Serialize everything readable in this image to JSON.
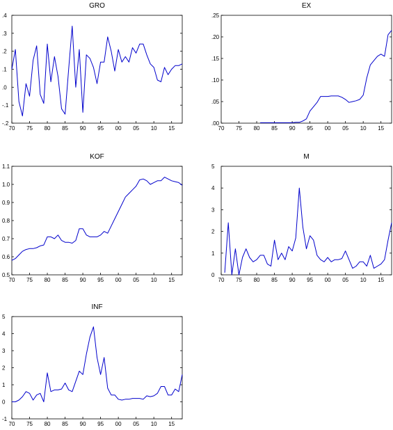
{
  "colors": {
    "line": "#0000cc",
    "axis": "#000000",
    "background": "#ffffff"
  },
  "chart_data": [
    {
      "type": "line",
      "title": "GRO",
      "xlabel": "",
      "ylabel": "",
      "xlim": [
        1970,
        2018
      ],
      "ylim": [
        -0.2,
        0.4
      ],
      "xticks": [
        1970,
        1975,
        1980,
        1985,
        1990,
        1995,
        2000,
        2005,
        2010,
        2015
      ],
      "xtick_labels": [
        "70",
        "75",
        "80",
        "85",
        "90",
        "95",
        "00",
        "05",
        "10",
        "15"
      ],
      "yticks": [
        -0.2,
        -0.1,
        0.0,
        0.1,
        0.2,
        0.3,
        0.4
      ],
      "ytick_labels": [
        "-.2",
        "-.1",
        ".0",
        ".1",
        ".2",
        ".3",
        ".4"
      ],
      "grid": false,
      "legend": "none",
      "series": [
        {
          "x": [
            1970,
            1971,
            1972,
            1973,
            1974,
            1975,
            1976,
            1977,
            1978,
            1979,
            1980,
            1981,
            1982,
            1983,
            1984,
            1985,
            1986,
            1987,
            1988,
            1989,
            1990,
            1991,
            1992,
            1993,
            1994,
            1995,
            1996,
            1997,
            1998,
            1999,
            2000,
            2001,
            2002,
            2003,
            2004,
            2005,
            2006,
            2007,
            2008,
            2009,
            2010,
            2011,
            2012,
            2013,
            2014,
            2015,
            2016,
            2017,
            2018
          ],
          "values": [
            0.1,
            0.21,
            -0.08,
            -0.16,
            0.02,
            -0.05,
            0.15,
            0.23,
            -0.04,
            -0.09,
            0.24,
            0.03,
            0.17,
            0.06,
            -0.12,
            -0.15,
            0.1,
            0.34,
            0.0,
            0.21,
            -0.14,
            0.18,
            0.16,
            0.11,
            0.02,
            0.14,
            0.14,
            0.28,
            0.2,
            0.09,
            0.21,
            0.14,
            0.17,
            0.14,
            0.22,
            0.19,
            0.24,
            0.24,
            0.18,
            0.13,
            0.11,
            0.04,
            0.03,
            0.11,
            0.07,
            0.1,
            0.12,
            0.12,
            0.13
          ]
        }
      ]
    },
    {
      "type": "line",
      "title": "EX",
      "xlabel": "",
      "ylabel": "",
      "xlim": [
        1970,
        2018
      ],
      "ylim": [
        0.0,
        0.25
      ],
      "xticks": [
        1970,
        1975,
        1980,
        1985,
        1990,
        1995,
        2000,
        2005,
        2010,
        2015
      ],
      "xtick_labels": [
        "70",
        "75",
        "80",
        "85",
        "90",
        "95",
        "00",
        "05",
        "10",
        "15"
      ],
      "yticks": [
        0.0,
        0.05,
        0.1,
        0.15,
        0.2,
        0.25
      ],
      "ytick_labels": [
        ".00",
        ".05",
        ".10",
        ".15",
        ".20",
        ".25"
      ],
      "grid": false,
      "legend": "none",
      "series": [
        {
          "x": [
            1981,
            1982,
            1983,
            1984,
            1985,
            1986,
            1987,
            1988,
            1989,
            1990,
            1991,
            1992,
            1993,
            1994,
            1995,
            1996,
            1997,
            1998,
            1999,
            2000,
            2001,
            2002,
            2003,
            2004,
            2005,
            2006,
            2007,
            2008,
            2009,
            2010,
            2011,
            2012,
            2013,
            2014,
            2015,
            2016,
            2017,
            2018
          ],
          "values": [
            0.001,
            0.001,
            0.001,
            0.001,
            0.001,
            0.001,
            0.001,
            0.001,
            0.001,
            0.001,
            0.002,
            0.002,
            0.005,
            0.01,
            0.028,
            0.038,
            0.048,
            0.062,
            0.062,
            0.062,
            0.063,
            0.063,
            0.063,
            0.06,
            0.055,
            0.048,
            0.05,
            0.052,
            0.055,
            0.065,
            0.105,
            0.135,
            0.145,
            0.155,
            0.16,
            0.155,
            0.205,
            0.215
          ]
        }
      ]
    },
    {
      "type": "line",
      "title": "KOF",
      "xlabel": "",
      "ylabel": "",
      "xlim": [
        1970,
        2018
      ],
      "ylim": [
        0.5,
        1.1
      ],
      "xticks": [
        1970,
        1975,
        1980,
        1985,
        1990,
        1995,
        2000,
        2005,
        2010,
        2015
      ],
      "xtick_labels": [
        "70",
        "75",
        "80",
        "85",
        "90",
        "95",
        "00",
        "05",
        "10",
        "15"
      ],
      "yticks": [
        0.5,
        0.6,
        0.7,
        0.8,
        0.9,
        1.0,
        1.1
      ],
      "ytick_labels": [
        "0.5",
        "0.6",
        "0.7",
        "0.8",
        "0.9",
        "1.0",
        "1.1"
      ],
      "grid": false,
      "legend": "none",
      "series": [
        {
          "x": [
            1970,
            1971,
            1972,
            1973,
            1974,
            1975,
            1976,
            1977,
            1978,
            1979,
            1980,
            1981,
            1982,
            1983,
            1984,
            1985,
            1986,
            1987,
            1988,
            1989,
            1990,
            1991,
            1992,
            1993,
            1994,
            1995,
            1996,
            1997,
            1998,
            1999,
            2000,
            2001,
            2002,
            2003,
            2004,
            2005,
            2006,
            2007,
            2008,
            2009,
            2010,
            2011,
            2012,
            2013,
            2014,
            2015,
            2016,
            2017,
            2018
          ],
          "values": [
            0.58,
            0.59,
            0.61,
            0.63,
            0.64,
            0.645,
            0.645,
            0.65,
            0.66,
            0.665,
            0.71,
            0.71,
            0.7,
            0.72,
            0.69,
            0.68,
            0.68,
            0.675,
            0.69,
            0.755,
            0.755,
            0.72,
            0.71,
            0.71,
            0.71,
            0.72,
            0.74,
            0.73,
            0.77,
            0.81,
            0.85,
            0.89,
            0.93,
            0.95,
            0.97,
            0.99,
            1.025,
            1.03,
            1.02,
            1.0,
            1.01,
            1.02,
            1.02,
            1.04,
            1.03,
            1.02,
            1.015,
            1.01,
            0.995
          ]
        }
      ]
    },
    {
      "type": "line",
      "title": "M",
      "xlabel": "",
      "ylabel": "",
      "xlim": [
        1970,
        2018
      ],
      "ylim": [
        0,
        5
      ],
      "xticks": [
        1970,
        1975,
        1980,
        1985,
        1990,
        1995,
        2000,
        2005,
        2010,
        2015
      ],
      "xtick_labels": [
        "70",
        "75",
        "80",
        "85",
        "90",
        "95",
        "00",
        "05",
        "10",
        "15"
      ],
      "yticks": [
        0,
        1,
        2,
        3,
        4,
        5
      ],
      "ytick_labels": [
        "0",
        "1",
        "2",
        "3",
        "4",
        "5"
      ],
      "grid": false,
      "legend": "none",
      "series": [
        {
          "x": [
            1971,
            1972,
            1973,
            1974,
            1975,
            1976,
            1977,
            1978,
            1979,
            1980,
            1981,
            1982,
            1983,
            1984,
            1985,
            1986,
            1987,
            1988,
            1989,
            1990,
            1991,
            1992,
            1993,
            1994,
            1995,
            1996,
            1997,
            1998,
            1999,
            2000,
            2001,
            2002,
            2003,
            2004,
            2005,
            2006,
            2007,
            2008,
            2009,
            2010,
            2011,
            2012,
            2013,
            2014,
            2015,
            2016,
            2017,
            2018
          ],
          "values": [
            0.1,
            2.4,
            0.0,
            1.2,
            0.0,
            0.8,
            1.2,
            0.8,
            0.6,
            0.7,
            0.9,
            0.9,
            0.5,
            0.4,
            1.6,
            0.7,
            1.0,
            0.7,
            1.3,
            1.1,
            1.7,
            4.0,
            2.2,
            1.2,
            1.8,
            1.6,
            0.9,
            0.7,
            0.6,
            0.8,
            0.6,
            0.7,
            0.7,
            0.75,
            1.1,
            0.7,
            0.3,
            0.4,
            0.6,
            0.6,
            0.4,
            0.9,
            0.3,
            0.4,
            0.5,
            0.7,
            1.6,
            2.4
          ]
        }
      ]
    },
    {
      "type": "line",
      "title": "INF",
      "xlabel": "",
      "ylabel": "",
      "xlim": [
        1970,
        2018
      ],
      "ylim": [
        -1,
        5
      ],
      "xticks": [
        1970,
        1975,
        1980,
        1985,
        1990,
        1995,
        2000,
        2005,
        2010,
        2015
      ],
      "xtick_labels": [
        "70",
        "75",
        "80",
        "85",
        "90",
        "95",
        "00",
        "05",
        "10",
        "15"
      ],
      "yticks": [
        -1,
        0,
        1,
        2,
        3,
        4,
        5
      ],
      "ytick_labels": [
        "-1",
        "0",
        "1",
        "2",
        "3",
        "4",
        "5"
      ],
      "grid": false,
      "legend": "none",
      "series": [
        {
          "x": [
            1970,
            1971,
            1972,
            1973,
            1974,
            1975,
            1976,
            1977,
            1978,
            1979,
            1980,
            1981,
            1982,
            1983,
            1984,
            1985,
            1986,
            1987,
            1988,
            1989,
            1990,
            1991,
            1992,
            1993,
            1994,
            1995,
            1996,
            1997,
            1998,
            1999,
            2000,
            2001,
            2002,
            2003,
            2004,
            2005,
            2006,
            2007,
            2008,
            2009,
            2010,
            2011,
            2012,
            2013,
            2014,
            2015,
            2016,
            2017,
            2018
          ],
          "values": [
            0.0,
            0.0,
            0.1,
            0.3,
            0.6,
            0.5,
            0.1,
            0.4,
            0.5,
            0.0,
            1.7,
            0.6,
            0.7,
            0.7,
            0.75,
            1.1,
            0.7,
            0.6,
            1.2,
            1.8,
            1.6,
            2.8,
            3.8,
            4.4,
            2.6,
            1.6,
            2.6,
            0.8,
            0.4,
            0.4,
            0.15,
            0.1,
            0.15,
            0.15,
            0.2,
            0.2,
            0.2,
            0.15,
            0.35,
            0.3,
            0.35,
            0.5,
            0.9,
            0.9,
            0.4,
            0.4,
            0.75,
            0.6,
            1.6
          ]
        }
      ]
    }
  ]
}
